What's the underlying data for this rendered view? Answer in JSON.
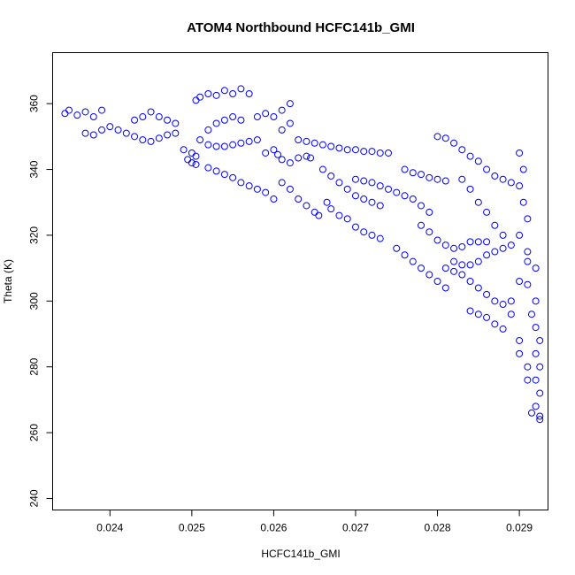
{
  "chart_data": {
    "type": "scatter",
    "title": "ATOM4 Northbound HCFC141b_GMI",
    "xlabel": "HCFC141b_GMI",
    "ylabel": "Theta (K)",
    "xlim": [
      0.0233,
      0.02935
    ],
    "ylim": [
      236.5,
      375.5
    ],
    "x_ticks": [
      0.024,
      0.025,
      0.026,
      0.027,
      0.028,
      0.029
    ],
    "x_tick_labels": [
      "0.024",
      "0.025",
      "0.026",
      "0.027",
      "0.028",
      "0.029"
    ],
    "y_ticks": [
      240,
      260,
      280,
      300,
      320,
      340,
      360
    ],
    "y_tick_labels": [
      "240",
      "260",
      "280",
      "300",
      "320",
      "340",
      "360"
    ],
    "marker": "open-circle",
    "color": "#0000ff",
    "grid": false,
    "series": [
      {
        "points": [
          [
            0.02345,
            357
          ],
          [
            0.0235,
            358
          ],
          [
            0.0236,
            356.5
          ],
          [
            0.0237,
            357.5
          ],
          [
            0.0238,
            356
          ],
          [
            0.0239,
            358
          ],
          [
            0.0237,
            351
          ],
          [
            0.0238,
            350.5
          ],
          [
            0.0239,
            352
          ],
          [
            0.024,
            353
          ],
          [
            0.0241,
            352
          ],
          [
            0.0242,
            351
          ],
          [
            0.0243,
            355
          ],
          [
            0.0244,
            356
          ],
          [
            0.0245,
            357.5
          ],
          [
            0.0246,
            356
          ],
          [
            0.0247,
            355
          ],
          [
            0.0248,
            354
          ],
          [
            0.0243,
            350
          ],
          [
            0.0244,
            349
          ],
          [
            0.0245,
            348.5
          ],
          [
            0.0246,
            349.5
          ],
          [
            0.0247,
            350.5
          ],
          [
            0.0248,
            351
          ],
          [
            0.0249,
            346
          ],
          [
            0.025,
            345
          ],
          [
            0.02495,
            343
          ],
          [
            0.025,
            342
          ],
          [
            0.02505,
            344
          ],
          [
            0.0251,
            349
          ],
          [
            0.0252,
            352
          ],
          [
            0.0253,
            354
          ],
          [
            0.0254,
            355
          ],
          [
            0.0255,
            356
          ],
          [
            0.0256,
            355
          ],
          [
            0.02505,
            361
          ],
          [
            0.0251,
            362
          ],
          [
            0.0252,
            363
          ],
          [
            0.0253,
            362.5
          ],
          [
            0.0254,
            364
          ],
          [
            0.0255,
            363
          ],
          [
            0.0256,
            364.5
          ],
          [
            0.0257,
            363
          ],
          [
            0.0252,
            347.5
          ],
          [
            0.0253,
            347
          ],
          [
            0.0254,
            347
          ],
          [
            0.0255,
            347.5
          ],
          [
            0.0256,
            348
          ],
          [
            0.0257,
            348.5
          ],
          [
            0.0258,
            349
          ],
          [
            0.0258,
            356
          ],
          [
            0.0259,
            357
          ],
          [
            0.026,
            356
          ],
          [
            0.0261,
            358
          ],
          [
            0.0262,
            360
          ],
          [
            0.0262,
            354
          ],
          [
            0.0261,
            352
          ],
          [
            0.02505,
            341.5
          ],
          [
            0.0252,
            340.5
          ],
          [
            0.0253,
            339.5
          ],
          [
            0.0254,
            338.5
          ],
          [
            0.0255,
            337.5
          ],
          [
            0.0256,
            336
          ],
          [
            0.0257,
            335
          ],
          [
            0.0258,
            334
          ],
          [
            0.0259,
            333
          ],
          [
            0.026,
            331
          ],
          [
            0.0259,
            345
          ],
          [
            0.026,
            346
          ],
          [
            0.02605,
            344.5
          ],
          [
            0.0261,
            343
          ],
          [
            0.0262,
            342
          ],
          [
            0.0263,
            343.5
          ],
          [
            0.0264,
            344
          ],
          [
            0.02645,
            343.5
          ],
          [
            0.0261,
            336
          ],
          [
            0.0262,
            334
          ],
          [
            0.0263,
            331
          ],
          [
            0.0264,
            329
          ],
          [
            0.0265,
            327
          ],
          [
            0.02655,
            326
          ],
          [
            0.0263,
            349
          ],
          [
            0.0264,
            348.5
          ],
          [
            0.0265,
            348
          ],
          [
            0.0266,
            347.5
          ],
          [
            0.0267,
            347
          ],
          [
            0.0268,
            346.5
          ],
          [
            0.0269,
            346
          ],
          [
            0.027,
            346
          ],
          [
            0.0271,
            345.5
          ],
          [
            0.0272,
            345.5
          ],
          [
            0.0273,
            345
          ],
          [
            0.0274,
            345
          ],
          [
            0.0266,
            340
          ],
          [
            0.0267,
            338
          ],
          [
            0.0268,
            336
          ],
          [
            0.0269,
            334
          ],
          [
            0.027,
            332
          ],
          [
            0.0271,
            331
          ],
          [
            0.0272,
            330
          ],
          [
            0.0273,
            329
          ],
          [
            0.02665,
            330
          ],
          [
            0.0267,
            328
          ],
          [
            0.0268,
            326
          ],
          [
            0.0269,
            325
          ],
          [
            0.027,
            322.5
          ],
          [
            0.0271,
            321
          ],
          [
            0.0272,
            320
          ],
          [
            0.0273,
            319
          ],
          [
            0.027,
            337
          ],
          [
            0.0271,
            336.5
          ],
          [
            0.0272,
            336
          ],
          [
            0.0273,
            335
          ],
          [
            0.0274,
            334
          ],
          [
            0.0275,
            333
          ],
          [
            0.0276,
            332
          ],
          [
            0.0277,
            331
          ],
          [
            0.0278,
            329
          ],
          [
            0.0279,
            327
          ],
          [
            0.0275,
            316
          ],
          [
            0.0276,
            314
          ],
          [
            0.0277,
            312
          ],
          [
            0.0278,
            310
          ],
          [
            0.0279,
            308
          ],
          [
            0.028,
            306
          ],
          [
            0.0281,
            304
          ],
          [
            0.0278,
            323
          ],
          [
            0.0279,
            321
          ],
          [
            0.028,
            318.5
          ],
          [
            0.0281,
            317
          ],
          [
            0.0282,
            316
          ],
          [
            0.0283,
            316.5
          ],
          [
            0.0284,
            318
          ],
          [
            0.0285,
            318
          ],
          [
            0.0286,
            318
          ],
          [
            0.0276,
            340
          ],
          [
            0.0277,
            339
          ],
          [
            0.0278,
            338.5
          ],
          [
            0.0279,
            337.5
          ],
          [
            0.028,
            337
          ],
          [
            0.0281,
            336.5
          ],
          [
            0.028,
            350
          ],
          [
            0.0281,
            349.5
          ],
          [
            0.0282,
            348
          ],
          [
            0.0283,
            346
          ],
          [
            0.0284,
            344
          ],
          [
            0.0285,
            342.5
          ],
          [
            0.0286,
            340
          ],
          [
            0.0287,
            338
          ],
          [
            0.0288,
            337
          ],
          [
            0.0289,
            336
          ],
          [
            0.0283,
            337
          ],
          [
            0.0284,
            334
          ],
          [
            0.0285,
            330
          ],
          [
            0.0286,
            327
          ],
          [
            0.0287,
            323
          ],
          [
            0.0288,
            320
          ],
          [
            0.0281,
            310
          ],
          [
            0.0282,
            309
          ],
          [
            0.0283,
            308
          ],
          [
            0.0284,
            306
          ],
          [
            0.0285,
            304
          ],
          [
            0.0286,
            302
          ],
          [
            0.0287,
            300
          ],
          [
            0.0288,
            299
          ],
          [
            0.0284,
            297
          ],
          [
            0.0285,
            296
          ],
          [
            0.0286,
            295
          ],
          [
            0.0287,
            293
          ],
          [
            0.0288,
            291.5
          ],
          [
            0.0282,
            312
          ],
          [
            0.0283,
            311
          ],
          [
            0.0284,
            311
          ],
          [
            0.0285,
            312
          ],
          [
            0.0286,
            314
          ],
          [
            0.0287,
            315
          ],
          [
            0.0288,
            316
          ],
          [
            0.0289,
            317
          ],
          [
            0.029,
            345
          ],
          [
            0.02905,
            340
          ],
          [
            0.029,
            335
          ],
          [
            0.02905,
            330
          ],
          [
            0.0291,
            325
          ],
          [
            0.029,
            320
          ],
          [
            0.0291,
            315
          ],
          [
            0.0292,
            310
          ],
          [
            0.0291,
            305
          ],
          [
            0.0292,
            300
          ],
          [
            0.02915,
            296
          ],
          [
            0.0292,
            292
          ],
          [
            0.02925,
            288
          ],
          [
            0.0292,
            284
          ],
          [
            0.02925,
            280
          ],
          [
            0.0292,
            276
          ],
          [
            0.02925,
            272
          ],
          [
            0.0292,
            268
          ],
          [
            0.02925,
            265
          ],
          [
            0.02915,
            266
          ],
          [
            0.02925,
            264
          ],
          [
            0.0289,
            296
          ],
          [
            0.029,
            288
          ],
          [
            0.029,
            284
          ],
          [
            0.0291,
            280
          ],
          [
            0.0291,
            276
          ],
          [
            0.0289,
            300
          ],
          [
            0.029,
            306
          ],
          [
            0.0291,
            312
          ]
        ]
      }
    ]
  }
}
